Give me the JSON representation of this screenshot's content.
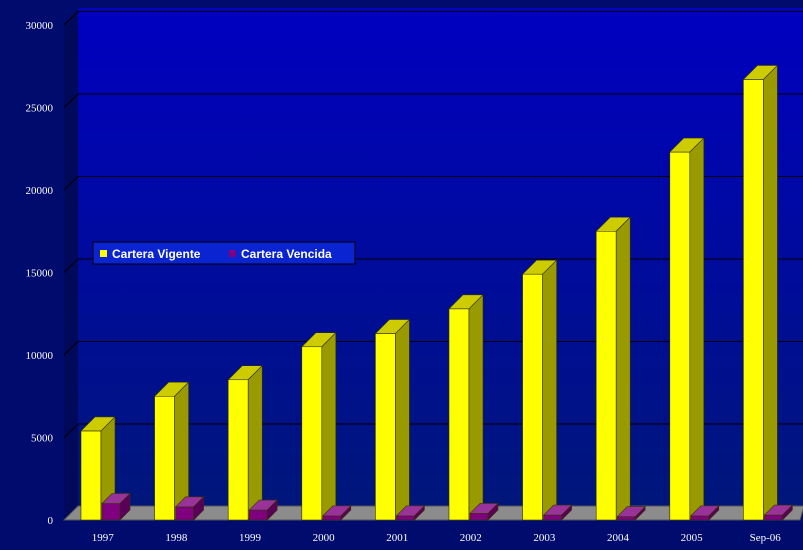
{
  "chart_data": {
    "type": "bar",
    "categories": [
      "1997",
      "1998",
      "1999",
      "2000",
      "2001",
      "2002",
      "2003",
      "2004",
      "2005",
      "Sep-06"
    ],
    "series": [
      {
        "name": "Cartera Vigente",
        "values": [
          5400,
          7500,
          8500,
          10500,
          11300,
          12800,
          14900,
          17500,
          22300,
          26700
        ]
      },
      {
        "name": "Cartera Vencida",
        "values": [
          1000,
          800,
          600,
          250,
          250,
          400,
          300,
          200,
          250,
          300
        ]
      }
    ],
    "y_ticks": [
      "0",
      "5000",
      "10000",
      "15000",
      "20000",
      "25000",
      "30000"
    ],
    "ylim": [
      0,
      30000
    ],
    "title": "",
    "xlabel": "",
    "ylabel": "",
    "grid": true,
    "legend_position": "left",
    "projection": "3d",
    "colors": {
      "vigente_front": "#ffff00",
      "vigente_top": "#cccc00",
      "vigente_side": "#999900",
      "vencida_front": "#800080",
      "vencida_top": "#993399",
      "vencida_side": "#5a005a",
      "plot_bg_top": "#0000c0",
      "plot_bg_bottom": "#00167a",
      "floor": "#8c8c8c",
      "grid": "#000000",
      "text": "#ffffff"
    }
  }
}
